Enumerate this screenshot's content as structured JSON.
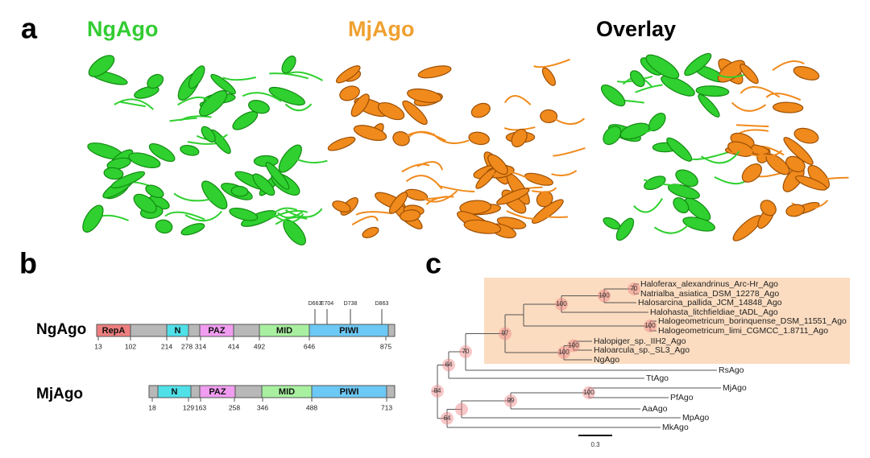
{
  "panel_a": {
    "label": "a",
    "titles": [
      "NgAgo",
      "MjAgo",
      "Overlay"
    ]
  },
  "panel_b": {
    "label": "b",
    "ngago": {
      "name": "NgAgo",
      "domains": [
        "RepA",
        "N",
        "PAZ",
        "MID",
        "PIWI"
      ],
      "positions": [
        13,
        102,
        214,
        278,
        314,
        414,
        492,
        646,
        875
      ],
      "residues": [
        "D663",
        "E704",
        "D738",
        "D863"
      ]
    },
    "mjago": {
      "name": "MjAgo",
      "domains": [
        "N",
        "PAZ",
        "MID",
        "PIWI"
      ],
      "positions": [
        18,
        129,
        163,
        258,
        346,
        488,
        713
      ]
    }
  },
  "panel_c": {
    "label": "c",
    "leaves": [
      "Haloferax_alexandrinus_Arc-Hr_Ago",
      "Natrialba_asiatica_DSM_12278_Ago",
      "Halosarcina_pallida_JCM_14848_Ago",
      "Halohasta_litchfieldiae_tADL_Ago",
      "Halogeometricum_borinquense_DSM_11551_Ago",
      "Halogeometricum_limi_CGMCC_1.8711_Ago",
      "Halopiger_sp._IIH2_Ago",
      "Haloarcula_sp._SL3_Ago",
      "NgAgo",
      "RsAgo",
      "TtAgo",
      "MjAgo",
      "PfAgo",
      "AaAgo",
      "MpAgo",
      "MkAgo"
    ],
    "bootstrap": [
      70,
      100,
      100,
      100,
      97,
      100,
      100,
      70,
      64,
      84,
      100,
      99,
      64
    ],
    "scale": "0.3"
  }
}
